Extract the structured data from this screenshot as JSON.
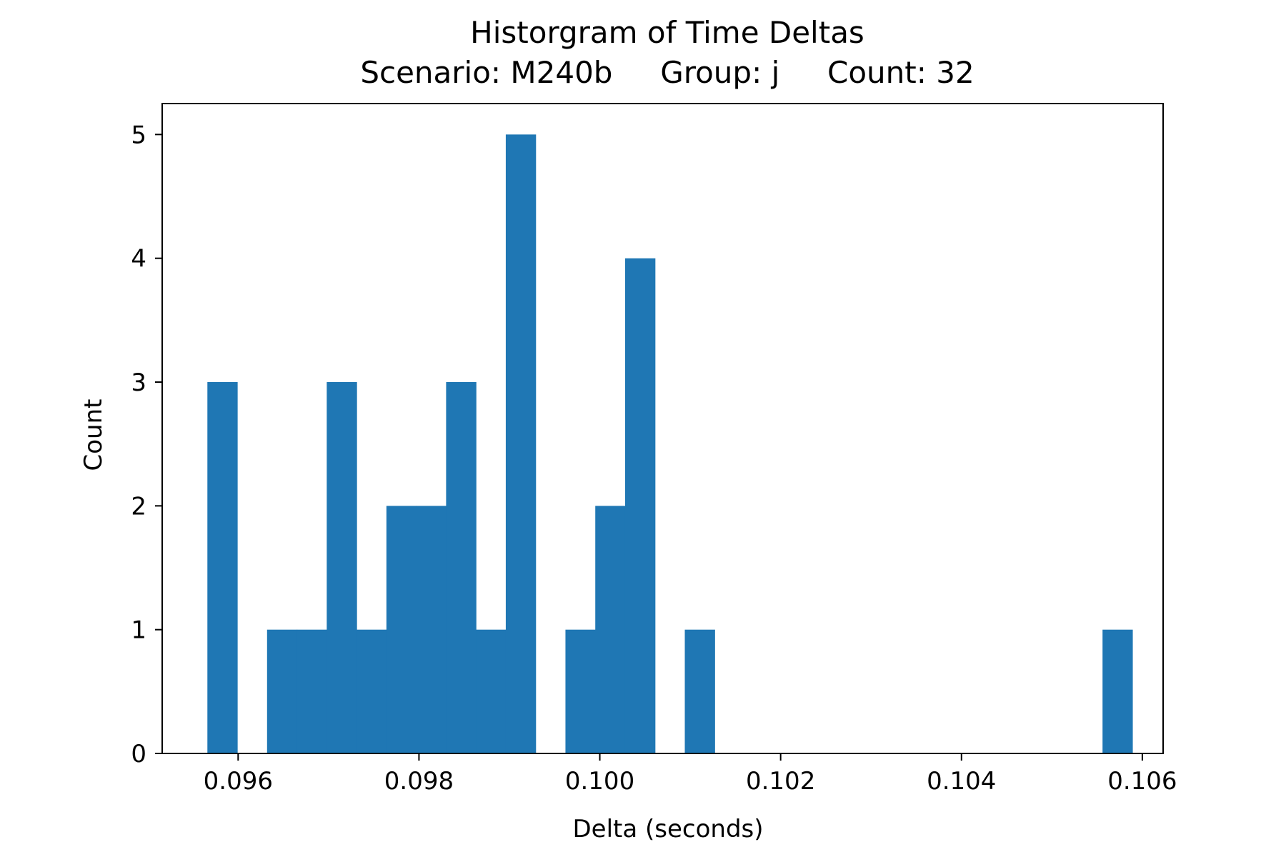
{
  "chart_data": {
    "type": "bar",
    "title": "Historgram of Time Deltas",
    "subtitle": "Scenario: M240b     Group: j     Count: 32",
    "xlabel": "Delta (seconds)",
    "ylabel": "Count",
    "xlim": [
      0.09516,
      0.10623
    ],
    "ylim": [
      0,
      5.25
    ],
    "x_ticks": [
      0.096,
      0.098,
      0.1,
      0.102,
      0.104,
      0.106
    ],
    "x_tick_labels": [
      "0.096",
      "0.098",
      "0.100",
      "0.102",
      "0.104",
      "0.106"
    ],
    "y_ticks": [
      0,
      1,
      2,
      3,
      4,
      5
    ],
    "y_tick_labels": [
      "0",
      "1",
      "2",
      "3",
      "4",
      "5"
    ],
    "grid": false,
    "bar_color": "#1f77b4",
    "bins": [
      {
        "start": 0.09566,
        "end": 0.09599,
        "value": 3
      },
      {
        "start": 0.09599,
        "end": 0.09632,
        "value": 0
      },
      {
        "start": 0.09632,
        "end": 0.09665,
        "value": 1
      },
      {
        "start": 0.09665,
        "end": 0.09698,
        "value": 1
      },
      {
        "start": 0.09698,
        "end": 0.09731,
        "value": 3
      },
      {
        "start": 0.09731,
        "end": 0.09764,
        "value": 1
      },
      {
        "start": 0.09764,
        "end": 0.09797,
        "value": 2
      },
      {
        "start": 0.09797,
        "end": 0.0983,
        "value": 2
      },
      {
        "start": 0.0983,
        "end": 0.09863,
        "value": 3
      },
      {
        "start": 0.09863,
        "end": 0.09896,
        "value": 1
      },
      {
        "start": 0.09896,
        "end": 0.09929,
        "value": 5
      },
      {
        "start": 0.09929,
        "end": 0.09962,
        "value": 0
      },
      {
        "start": 0.09962,
        "end": 0.09995,
        "value": 1
      },
      {
        "start": 0.09995,
        "end": 0.10028,
        "value": 2
      },
      {
        "start": 0.10028,
        "end": 0.10061,
        "value": 4
      },
      {
        "start": 0.10061,
        "end": 0.10094,
        "value": 0
      },
      {
        "start": 0.10094,
        "end": 0.10127,
        "value": 1
      },
      {
        "start": 0.10127,
        "end": 0.1016,
        "value": 0
      },
      {
        "start": 0.1016,
        "end": 0.10193,
        "value": 0
      },
      {
        "start": 0.10193,
        "end": 0.10226,
        "value": 0
      },
      {
        "start": 0.10226,
        "end": 0.10259,
        "value": 0
      },
      {
        "start": 0.10259,
        "end": 0.10292,
        "value": 0
      },
      {
        "start": 0.10292,
        "end": 0.10325,
        "value": 0
      },
      {
        "start": 0.10325,
        "end": 0.10358,
        "value": 0
      },
      {
        "start": 0.10358,
        "end": 0.10391,
        "value": 0
      },
      {
        "start": 0.10391,
        "end": 0.10424,
        "value": 0
      },
      {
        "start": 0.10424,
        "end": 0.10457,
        "value": 0
      },
      {
        "start": 0.10457,
        "end": 0.1049,
        "value": 0
      },
      {
        "start": 0.1049,
        "end": 0.10523,
        "value": 0
      },
      {
        "start": 0.10523,
        "end": 0.10556,
        "value": 0
      },
      {
        "start": 0.10556,
        "end": 0.10589,
        "value": 1
      }
    ]
  }
}
